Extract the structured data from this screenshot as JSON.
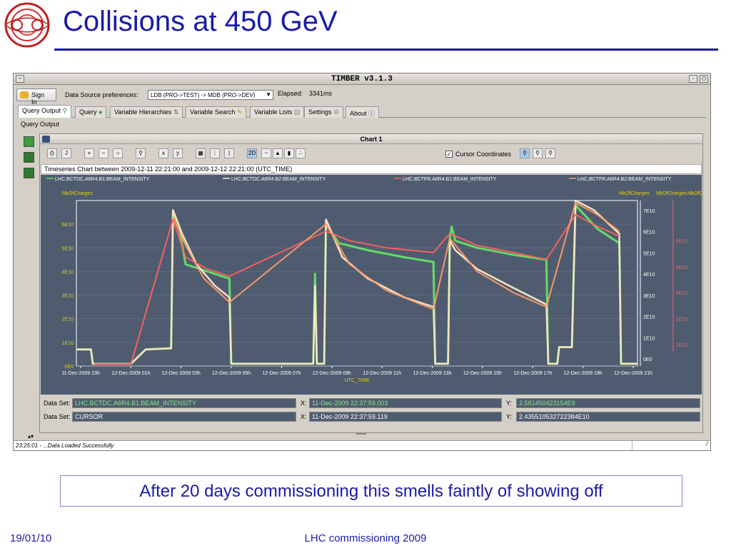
{
  "slide": {
    "title": "Collisions at 450 GeV",
    "note": "After 20 days commissioning this smells faintly of showing off",
    "footer_date": "19/01/10",
    "footer_center": "LHC commissioning 2009"
  },
  "app": {
    "window_title": "TIMBER v3.1.3",
    "sign_in_label": "Sign In",
    "datasource_label": "Data Source preferences:",
    "datasource_value": "LDB (PRO->TEST) -> MDB (PRO->DEV)",
    "elapsed_label": "Elapsed:",
    "elapsed_value": "3341ms",
    "tabs": [
      {
        "label": "Query Output"
      },
      {
        "label": "Query"
      },
      {
        "label": "Variable Hierarchies"
      },
      {
        "label": "Variable Search"
      },
      {
        "label": "Variable Lists"
      },
      {
        "label": "Settings"
      },
      {
        "label": "About"
      }
    ],
    "panel_title": "Query Output",
    "chart_title": "Chart 1",
    "cursor_coords_label": "Cursor Coordinates",
    "timeseries_title": "Timeseries Chart between 2009-12-11 22:21:00 and 2009-12-12 22:21:00 (UTC_TIME)",
    "dataset_rows": [
      {
        "label": "Data Set:",
        "name": "LHC.BCTDC.A6R4.B1:BEAM_INTENSITY",
        "x_label": "X:",
        "x": "11-Dec-2009 22:37:59.003",
        "y_label": "Y:",
        "y": "2.581450423154E9"
      },
      {
        "label": "Data Set:",
        "name": "CURSOR",
        "x_label": "X:",
        "x": "11-Dec-2009 22:37:59.119",
        "y_label": "Y:",
        "y": "2.435510532722384E10"
      }
    ],
    "status_text": "23:25:01 - ...Data Loaded Successfully",
    "colors": {
      "plot_bg": "#4f5c70",
      "b1": "#ffd0a0",
      "b2": "#ffe6c8",
      "bctfr_b1": "#ff6060",
      "bctfr_b2": "#ff9a6a",
      "green": "#66e066"
    }
  },
  "chart_data": {
    "type": "line",
    "title": "Timeseries Chart between 2009-12-11 22:21:00 and 2009-12-12 22:21:00 (UTC_TIME)",
    "xlabel": "UTC_TIME",
    "y_left_label": "NbOfCharges",
    "y_right_labels": [
      "NbOfCharges",
      "NbOfCharges",
      "NbOfCharges"
    ],
    "x_ticks": [
      "11-Dec-2009 23h",
      "12-Dec-2009 01h",
      "12-Dec-2009 03h",
      "12-Dec-2009 05h",
      "12-Dec-2009 07h",
      "12-Dec-2009 09h",
      "12-Dec-2009 11h",
      "12-Dec-2009 13h",
      "12-Dec-2009 15h",
      "12-Dec-2009 17h",
      "12-Dec-2009 19h",
      "12-Dec-2009 21h"
    ],
    "y_left_ticks": [
      "0E0",
      "1E10",
      "2E10",
      "3E10",
      "4E10",
      "5E10",
      "6E10"
    ],
    "y_right1_ticks": [
      "0E0",
      "1E10",
      "2E10",
      "3E10",
      "4E10",
      "5E10",
      "6E10",
      "7E10"
    ],
    "y_right2_ticks": [
      "1E10",
      "2E10",
      "3E10",
      "4E10",
      "5E10"
    ],
    "ylim": [
      0,
      70000000000.0
    ],
    "legend": [
      "LHC.BCTDC.A6R4.B1:BEAM_INTENSITY",
      "LHC.BCTDC.A6R4.B2:BEAM_INTENSITY",
      "LHC.BCTFR.A6R4.B1:BEAM_INTENSITY",
      "LHC.BCTFR.A6R4.B2:BEAM_INTENSITY"
    ],
    "series": [
      {
        "name": "LHC.BCTDC.A6R4.B1:BEAM_INTENSITY",
        "color": "#66e066",
        "points": [
          [
            0,
            0.7
          ],
          [
            0.4,
            0.7
          ],
          [
            0.45,
            0.1
          ],
          [
            1.5,
            0.1
          ],
          [
            1.9,
            0.7
          ],
          [
            2.6,
            0.75
          ],
          [
            2.65,
            6.5
          ],
          [
            2.8,
            6.0
          ],
          [
            3.0,
            4.3
          ],
          [
            3.6,
            4.0
          ],
          [
            4.2,
            3.7
          ],
          [
            4.25,
            0.1
          ],
          [
            6.5,
            0.1
          ],
          [
            6.55,
            3.9
          ],
          [
            6.6,
            0.1
          ],
          [
            6.8,
            0.1
          ],
          [
            6.85,
            6.0
          ],
          [
            7.2,
            5.2
          ],
          [
            8.0,
            4.9
          ],
          [
            9.0,
            4.6
          ],
          [
            9.8,
            4.4
          ],
          [
            9.85,
            0.1
          ],
          [
            10.2,
            0.1
          ],
          [
            10.25,
            5.4
          ],
          [
            10.3,
            5.9
          ],
          [
            10.4,
            5.3
          ],
          [
            11.0,
            5.0
          ],
          [
            12.0,
            4.7
          ],
          [
            12.9,
            4.5
          ],
          [
            12.95,
            0.1
          ],
          [
            13.2,
            0.1
          ],
          [
            13.25,
            0.8
          ],
          [
            13.6,
            0.8
          ],
          [
            13.7,
            6.8
          ],
          [
            14.3,
            5.8
          ],
          [
            14.9,
            5.2
          ],
          [
            14.95,
            0.1
          ],
          [
            15.4,
            0.1
          ]
        ]
      },
      {
        "name": "LHC.BCTDC.A6R4.B2:BEAM_INTENSITY",
        "color": "#ffe6c8",
        "points": [
          [
            0,
            0.7
          ],
          [
            0.4,
            0.7
          ],
          [
            0.45,
            0.1
          ],
          [
            1.5,
            0.1
          ],
          [
            1.9,
            0.7
          ],
          [
            2.6,
            0.75
          ],
          [
            2.65,
            6.6
          ],
          [
            2.9,
            5.6
          ],
          [
            3.3,
            4.3
          ],
          [
            3.8,
            3.4
          ],
          [
            4.2,
            2.9
          ],
          [
            4.25,
            0.1
          ],
          [
            6.5,
            0.1
          ],
          [
            6.55,
            3.4
          ],
          [
            6.6,
            0.1
          ],
          [
            6.8,
            0.1
          ],
          [
            6.85,
            6.2
          ],
          [
            7.3,
            4.6
          ],
          [
            8.0,
            3.7
          ],
          [
            9.0,
            2.9
          ],
          [
            9.8,
            2.5
          ],
          [
            9.85,
            0.1
          ],
          [
            10.2,
            0.1
          ],
          [
            10.25,
            5.3
          ],
          [
            10.4,
            4.9
          ],
          [
            11.0,
            4.1
          ],
          [
            12.0,
            3.3
          ],
          [
            12.9,
            2.6
          ],
          [
            12.95,
            0.1
          ],
          [
            13.2,
            0.1
          ],
          [
            13.25,
            0.8
          ],
          [
            13.6,
            0.8
          ],
          [
            13.7,
            7.0
          ],
          [
            14.2,
            6.6
          ],
          [
            14.9,
            5.6
          ],
          [
            14.95,
            0.1
          ],
          [
            15.4,
            0.1
          ]
        ]
      },
      {
        "name": "LHC.BCTFR.A6R4.B1:BEAM_INTENSITY",
        "color": "#ff6060",
        "points": [
          [
            0.5,
            0.1
          ],
          [
            1.5,
            0.1
          ],
          [
            2.65,
            6.2
          ],
          [
            3.0,
            4.6
          ],
          [
            3.6,
            4.1
          ],
          [
            4.2,
            3.8
          ],
          [
            6.85,
            5.7
          ],
          [
            7.5,
            5.3
          ],
          [
            8.5,
            5.0
          ],
          [
            9.8,
            4.8
          ],
          [
            10.25,
            5.6
          ],
          [
            11.0,
            5.1
          ],
          [
            12.0,
            4.8
          ],
          [
            12.9,
            4.5
          ],
          [
            13.7,
            6.4
          ],
          [
            14.3,
            5.9
          ],
          [
            14.9,
            5.5
          ]
        ]
      },
      {
        "name": "LHC.BCTFR.A6R4.B2:BEAM_INTENSITY",
        "color": "#ff9a6a",
        "points": [
          [
            2.65,
            6.3
          ],
          [
            3.0,
            5.1
          ],
          [
            3.5,
            3.7
          ],
          [
            4.2,
            2.7
          ],
          [
            6.85,
            6.0
          ],
          [
            7.5,
            4.3
          ],
          [
            8.5,
            3.2
          ],
          [
            9.8,
            2.4
          ],
          [
            10.25,
            5.4
          ],
          [
            11.0,
            4.0
          ],
          [
            12.0,
            3.1
          ],
          [
            12.9,
            2.5
          ],
          [
            13.7,
            6.9
          ],
          [
            14.3,
            6.4
          ],
          [
            14.9,
            5.7
          ]
        ]
      }
    ]
  }
}
